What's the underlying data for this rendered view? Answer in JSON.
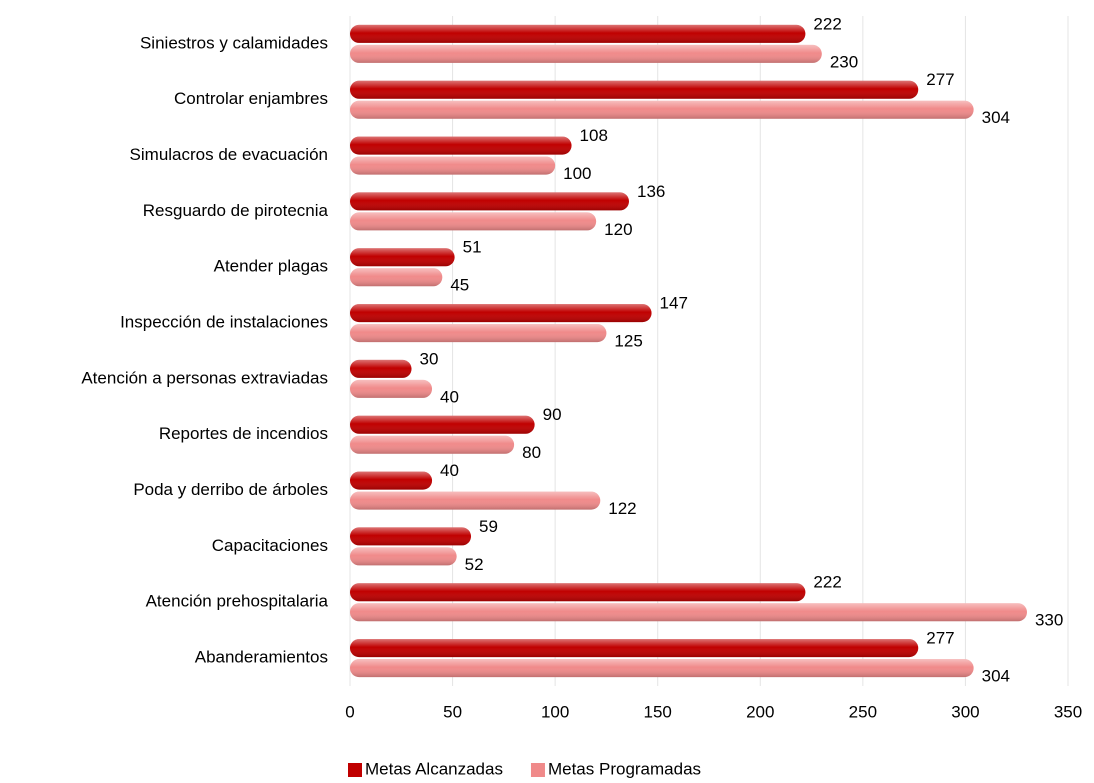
{
  "chart_data": {
    "type": "bar",
    "orientation": "horizontal",
    "categories": [
      "Siniestros y calamidades",
      "Controlar enjambres",
      "Simulacros de evacuación",
      "Resguardo de pirotecnia",
      "Atender plagas",
      "Inspección de instalaciones",
      "Atención a personas extraviadas",
      "Reportes de incendios",
      "Poda y derribo de árboles",
      "Capacitaciones",
      "Atención prehospitalaria",
      "Abanderamientos"
    ],
    "series": [
      {
        "name": "Metas Alcanzadas",
        "color": "#c00000",
        "values": [
          222,
          277,
          108,
          136,
          51,
          147,
          30,
          90,
          40,
          59,
          222,
          277
        ]
      },
      {
        "name": "Metas Programadas",
        "color": "#f08a8a",
        "values": [
          230,
          304,
          100,
          120,
          45,
          125,
          40,
          80,
          122,
          52,
          330,
          304
        ]
      }
    ],
    "xlim": [
      0,
      350
    ],
    "xticks": [
      0,
      50,
      100,
      150,
      200,
      250,
      300,
      350
    ],
    "grid": true,
    "legend": "bottom",
    "data_labels": true
  }
}
